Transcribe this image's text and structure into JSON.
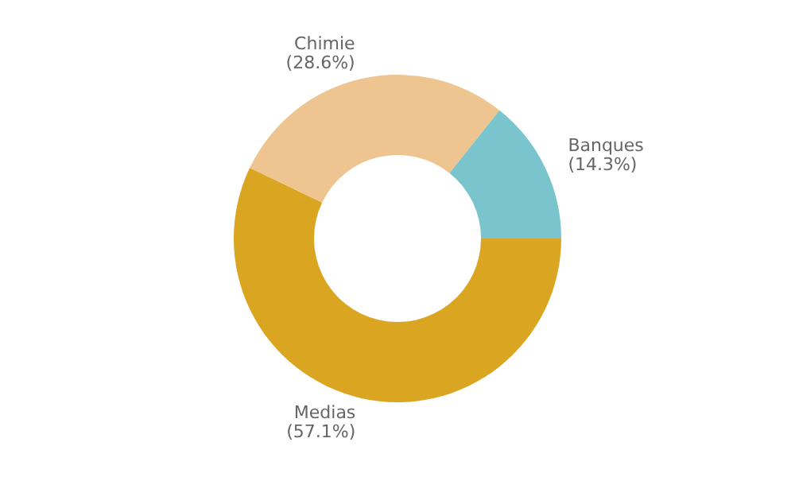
{
  "chart_data": {
    "type": "donut",
    "categories": [
      "Medias",
      "Chimie",
      "Banques"
    ],
    "values": [
      57.1,
      28.6,
      14.3
    ],
    "value_labels": [
      "(57.1%)",
      "(28.6%)",
      "(14.3%)"
    ],
    "colors": [
      "#daa520",
      "#eec591",
      "#7ac5cd"
    ],
    "legend": false
  }
}
